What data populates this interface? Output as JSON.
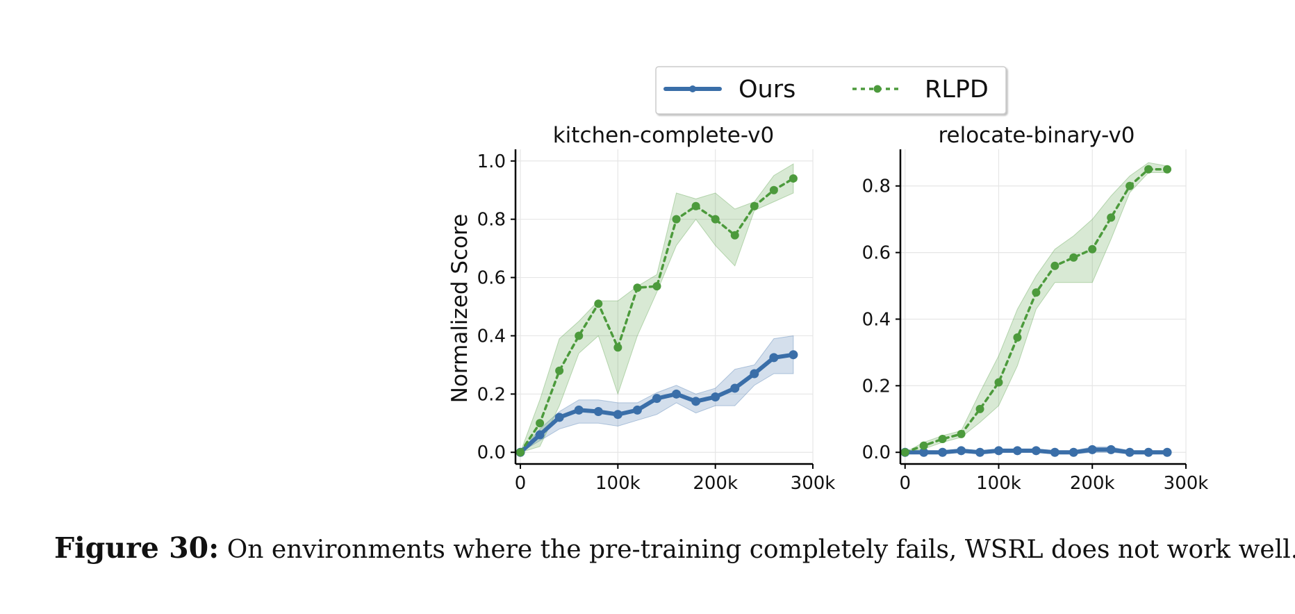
{
  "legend": {
    "items": [
      {
        "label": "Ours",
        "color": "#3a6ea8",
        "style": "solid"
      },
      {
        "label": "RLPD",
        "color": "#4c9a3c",
        "style": "dotted"
      }
    ],
    "placement": "top-center"
  },
  "caption": {
    "label": "Figure 30:",
    "text": "On environments where the pre-training completely fails, WSRL does not work well."
  },
  "chart_data": [
    {
      "type": "line",
      "title": "kitchen-complete-v0",
      "xlabel": "",
      "ylabel": "Normalized Score",
      "xlim": [
        -5000,
        300000
      ],
      "ylim": [
        -0.04,
        1.04
      ],
      "xticks": [
        0,
        100000,
        200000,
        300000
      ],
      "xtick_labels": [
        "0",
        "100k",
        "200k",
        "300k"
      ],
      "yticks": [
        0.0,
        0.2,
        0.4,
        0.6,
        0.8,
        1.0
      ],
      "ytick_labels": [
        "0.0",
        "0.2",
        "0.4",
        "0.6",
        "0.8",
        "1.0"
      ],
      "grid": true,
      "x": [
        0,
        20000,
        40000,
        60000,
        80000,
        100000,
        120000,
        140000,
        160000,
        180000,
        200000,
        220000,
        240000,
        260000,
        280000
      ],
      "series": [
        {
          "name": "Ours",
          "color": "#3a6ea8",
          "values": [
            0.0,
            0.06,
            0.12,
            0.145,
            0.14,
            0.13,
            0.145,
            0.185,
            0.2,
            0.175,
            0.19,
            0.22,
            0.27,
            0.325,
            0.335
          ],
          "lower": [
            0.0,
            0.04,
            0.08,
            0.1,
            0.1,
            0.09,
            0.11,
            0.13,
            0.17,
            0.135,
            0.16,
            0.16,
            0.23,
            0.27,
            0.27
          ],
          "upper": [
            0.0,
            0.08,
            0.14,
            0.18,
            0.18,
            0.17,
            0.17,
            0.205,
            0.23,
            0.2,
            0.22,
            0.285,
            0.3,
            0.39,
            0.4
          ]
        },
        {
          "name": "RLPD",
          "color": "#4c9a3c",
          "values": [
            0.0,
            0.1,
            0.28,
            0.4,
            0.51,
            0.36,
            0.565,
            0.57,
            0.8,
            0.845,
            0.8,
            0.745,
            0.845,
            0.9,
            0.94
          ],
          "lower": [
            0.0,
            0.02,
            0.16,
            0.34,
            0.4,
            0.2,
            0.4,
            0.55,
            0.71,
            0.8,
            0.71,
            0.64,
            0.83,
            0.86,
            0.89
          ],
          "upper": [
            0.0,
            0.18,
            0.39,
            0.45,
            0.52,
            0.52,
            0.57,
            0.61,
            0.89,
            0.87,
            0.89,
            0.835,
            0.86,
            0.95,
            0.99
          ]
        }
      ]
    },
    {
      "type": "line",
      "title": "relocate-binary-v0",
      "xlabel": "",
      "ylabel": "",
      "xlim": [
        -5000,
        300000
      ],
      "ylim": [
        -0.035,
        0.91
      ],
      "xticks": [
        0,
        100000,
        200000,
        300000
      ],
      "xtick_labels": [
        "0",
        "100k",
        "200k",
        "300k"
      ],
      "yticks": [
        0.0,
        0.2,
        0.4,
        0.6,
        0.8
      ],
      "ytick_labels": [
        "0.0",
        "0.2",
        "0.4",
        "0.6",
        "0.8"
      ],
      "grid": true,
      "x": [
        0,
        20000,
        40000,
        60000,
        80000,
        100000,
        120000,
        140000,
        160000,
        180000,
        200000,
        220000,
        240000,
        260000,
        280000
      ],
      "series": [
        {
          "name": "Ours",
          "color": "#3a6ea8",
          "values": [
            0.0,
            0.0,
            0.0,
            0.005,
            0.0,
            0.005,
            0.005,
            0.005,
            0.0,
            0.0,
            0.008,
            0.008,
            0.0,
            0.0,
            0.0
          ],
          "lower": [
            0.0,
            -0.005,
            -0.005,
            0.0,
            -0.005,
            0.0,
            0.0,
            0.0,
            -0.005,
            -0.005,
            0.0,
            0.0,
            -0.005,
            -0.005,
            -0.005
          ],
          "upper": [
            0.0,
            0.005,
            0.005,
            0.01,
            0.005,
            0.01,
            0.01,
            0.01,
            0.005,
            0.005,
            0.016,
            0.016,
            0.005,
            0.005,
            0.005
          ]
        },
        {
          "name": "RLPD",
          "color": "#4c9a3c",
          "values": [
            0.0,
            0.02,
            0.04,
            0.055,
            0.13,
            0.21,
            0.345,
            0.48,
            0.56,
            0.585,
            0.61,
            0.705,
            0.8,
            0.85,
            0.85
          ],
          "lower": [
            0.0,
            0.01,
            0.03,
            0.045,
            0.09,
            0.14,
            0.26,
            0.43,
            0.51,
            0.51,
            0.51,
            0.64,
            0.78,
            0.84,
            0.84
          ],
          "upper": [
            0.0,
            0.03,
            0.05,
            0.065,
            0.18,
            0.29,
            0.43,
            0.53,
            0.61,
            0.65,
            0.7,
            0.77,
            0.83,
            0.87,
            0.86
          ]
        }
      ]
    }
  ]
}
